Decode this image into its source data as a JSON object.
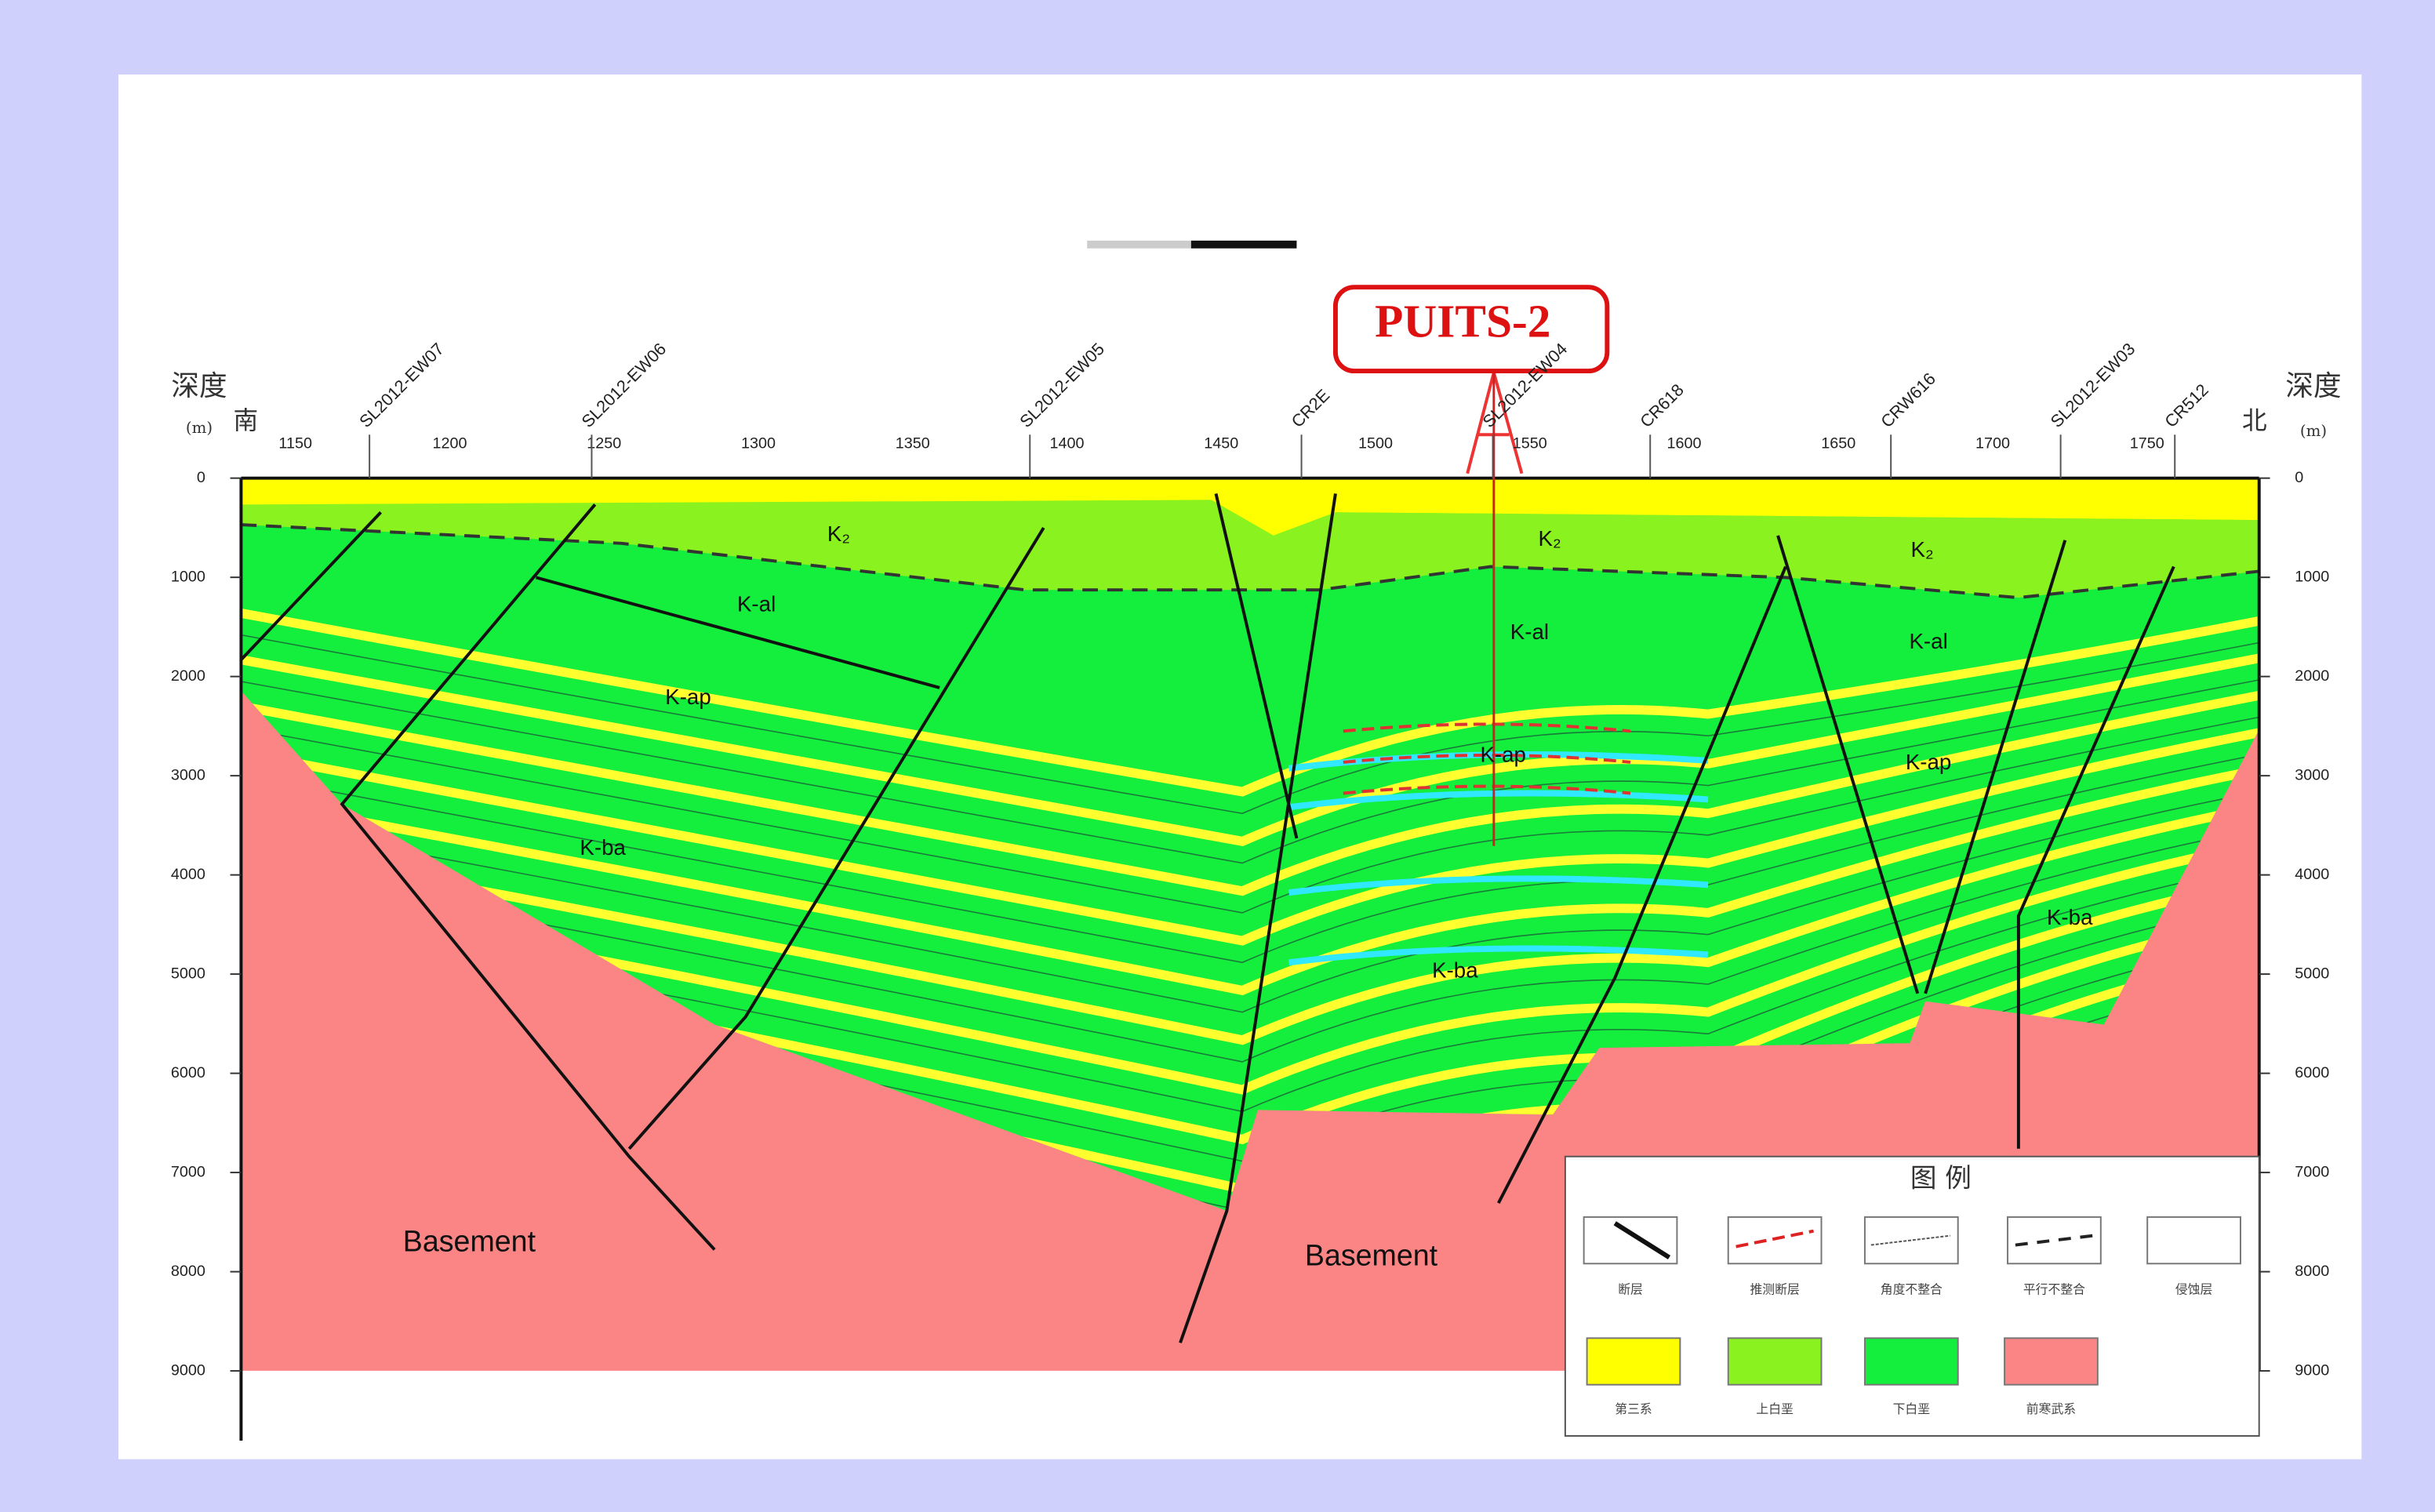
{
  "header": {
    "title": "PUITS-2"
  },
  "axes": {
    "depth_label": "深度",
    "depth_unit": "(m)",
    "south": "南",
    "north": "北",
    "x_ticks": [
      1150,
      1200,
      1250,
      1300,
      1350,
      1400,
      1450,
      1500,
      1550,
      1600,
      1650,
      1700,
      1750
    ],
    "depth_ticks": [
      0,
      1000,
      2000,
      3000,
      4000,
      5000,
      6000,
      7000,
      8000,
      9000
    ]
  },
  "wells": [
    {
      "name": "SL2012-EW07",
      "x": 1174
    },
    {
      "name": "SL2012-EW06",
      "x": 1246
    },
    {
      "name": "SL2012-EW05",
      "x": 1388
    },
    {
      "name": "CR2E",
      "x": 1476
    },
    {
      "name": "SL2012-EW04",
      "x": 1538
    },
    {
      "name": "CR618",
      "x": 1589
    },
    {
      "name": "CRW616",
      "x": 1667
    },
    {
      "name": "SL2012-EW03",
      "x": 1722
    },
    {
      "name": "CR512",
      "x": 1759
    }
  ],
  "units": [
    {
      "text": "K₂"
    },
    {
      "text": "K₂"
    },
    {
      "text": "K₂"
    },
    {
      "text": "K-al"
    },
    {
      "text": "K-al"
    },
    {
      "text": "K-al"
    },
    {
      "text": "K-ap"
    },
    {
      "text": "K-ap"
    },
    {
      "text": "K-ap"
    },
    {
      "text": "K-ba"
    },
    {
      "text": "K-ba"
    },
    {
      "text": "K-ba"
    },
    {
      "text": "Basement"
    },
    {
      "text": "Basement"
    }
  ],
  "legend": {
    "title": "图 例",
    "items": [
      "断层",
      "推测断层",
      "角度不整合",
      "平行不整合",
      "侵蚀层",
      "第三系",
      "上白垩",
      "下白垩",
      "前寒武系"
    ]
  }
}
